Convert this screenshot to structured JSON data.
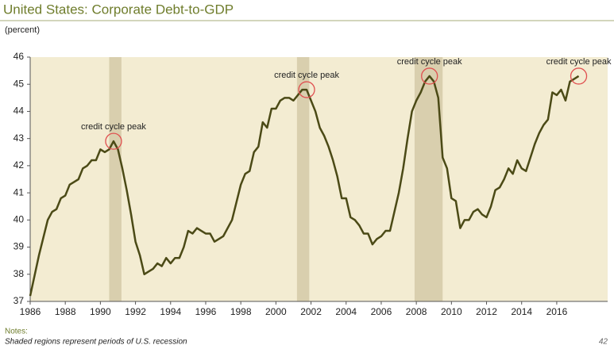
{
  "chart_data": {
    "type": "line",
    "title": "United States: Corporate Debt-to-GDP",
    "subtitle": "(percent)",
    "notes_label": "Notes:",
    "notes": "Shaded regions represent periods of U.S. recession",
    "x": [
      1986.0,
      1986.5,
      1987.0,
      1987.25,
      1987.5,
      1987.75,
      1988.0,
      1988.25,
      1988.5,
      1988.75,
      1989.0,
      1989.25,
      1989.5,
      1989.75,
      1990.0,
      1990.25,
      1990.5,
      1990.75,
      1991.0,
      1991.25,
      1991.5,
      1991.75,
      1992.0,
      1992.25,
      1992.5,
      1992.75,
      1993.0,
      1993.25,
      1993.5,
      1993.75,
      1994.0,
      1994.25,
      1994.5,
      1994.75,
      1995.0,
      1995.25,
      1995.5,
      1995.75,
      1996.0,
      1996.25,
      1996.5,
      1996.75,
      1997.0,
      1997.5,
      1998.0,
      1998.25,
      1998.5,
      1998.75,
      1999.0,
      1999.25,
      1999.5,
      1999.75,
      2000.0,
      2000.25,
      2000.5,
      2000.75,
      2001.0,
      2001.25,
      2001.5,
      2001.75,
      2002.0,
      2002.25,
      2002.5,
      2002.75,
      2003.0,
      2003.25,
      2003.5,
      2003.75,
      2004.0,
      2004.25,
      2004.5,
      2004.75,
      2005.0,
      2005.25,
      2005.5,
      2005.75,
      2006.0,
      2006.25,
      2006.5,
      2006.75,
      2007.0,
      2007.25,
      2007.5,
      2007.75,
      2008.0,
      2008.25,
      2008.5,
      2008.75,
      2009.0,
      2009.25,
      2009.5,
      2009.75,
      2010.0,
      2010.25,
      2010.5,
      2010.75,
      2011.0,
      2011.25,
      2011.5,
      2011.75,
      2012.0,
      2012.25,
      2012.5,
      2012.75,
      2013.0,
      2013.25,
      2013.5,
      2013.75,
      2014.0,
      2014.25,
      2014.5,
      2014.75,
      2015.0,
      2015.25,
      2015.5,
      2015.75,
      2016.0,
      2016.25,
      2016.5,
      2016.75,
      2017.0,
      2017.25
    ],
    "series": [
      {
        "color": "#4b4a16",
        "values": [
          37.2,
          38.7,
          40.0,
          40.3,
          40.4,
          40.8,
          40.9,
          41.3,
          41.4,
          41.5,
          41.9,
          42.0,
          42.2,
          42.2,
          42.6,
          42.5,
          42.6,
          42.9,
          42.6,
          41.9,
          41.1,
          40.2,
          39.2,
          38.7,
          38.0,
          38.1,
          38.2,
          38.4,
          38.3,
          38.6,
          38.4,
          38.6,
          38.6,
          39.0,
          39.6,
          39.5,
          39.7,
          39.6,
          39.5,
          39.5,
          39.2,
          39.3,
          39.4,
          40.0,
          41.3,
          41.7,
          41.8,
          42.5,
          42.7,
          43.6,
          43.4,
          44.1,
          44.1,
          44.4,
          44.5,
          44.5,
          44.4,
          44.6,
          44.8,
          44.8,
          44.4,
          44.0,
          43.4,
          43.1,
          42.7,
          42.2,
          41.6,
          40.8,
          40.8,
          40.1,
          40.0,
          39.8,
          39.5,
          39.5,
          39.1,
          39.3,
          39.4,
          39.6,
          39.6,
          40.3,
          41.0,
          41.9,
          43.0,
          44.0,
          44.4,
          44.7,
          45.1,
          45.3,
          45.1,
          44.5,
          42.3,
          41.9,
          40.8,
          40.7,
          39.7,
          40.0,
          40.0,
          40.3,
          40.4,
          40.2,
          40.1,
          40.5,
          41.1,
          41.2,
          41.5,
          41.9,
          41.7,
          42.2,
          41.9,
          41.8,
          42.3,
          42.8,
          43.2,
          43.5,
          43.7,
          44.7,
          44.6,
          44.8,
          44.4,
          45.1,
          45.2,
          45.3
        ]
      }
    ],
    "recessions": [
      {
        "start": 1990.5,
        "end": 1991.2
      },
      {
        "start": 2001.2,
        "end": 2001.9
      },
      {
        "start": 2007.9,
        "end": 2009.5
      }
    ],
    "recession_color": "#d9cfae",
    "plot_background": "#f3ecd2",
    "annotations": [
      {
        "text": "credit cycle peak",
        "x": 1990.75,
        "y": 42.9
      },
      {
        "text": "credit cycle peak",
        "x": 2001.75,
        "y": 44.8
      },
      {
        "text": "credit cycle peak",
        "x": 2008.75,
        "y": 45.3
      },
      {
        "text": "credit cycle peak",
        "x": 2017.25,
        "y": 45.3
      }
    ],
    "annotation_color": "#e05050",
    "xlim": [
      1986,
      2018.9
    ],
    "ylim": [
      37,
      46
    ],
    "xticks": [
      1986,
      1988,
      1990,
      1992,
      1994,
      1996,
      1998,
      2000,
      2002,
      2004,
      2006,
      2008,
      2010,
      2012,
      2014,
      2016
    ],
    "yticks": [
      37,
      38,
      39,
      40,
      41,
      42,
      43,
      44,
      45,
      46
    ]
  },
  "page_number": "42"
}
